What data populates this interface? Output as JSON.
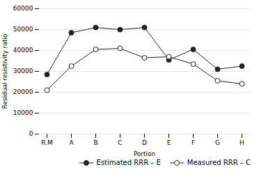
{
  "chart_data": {
    "type": "line",
    "categories": [
      "R.M",
      "A",
      "B",
      "C",
      "D",
      "E",
      "F",
      "G",
      "H"
    ],
    "series": [
      {
        "name": "Estimated RRR – E",
        "color": "#222222",
        "marker": "circle",
        "values": [
          28500,
          48500,
          51000,
          50000,
          51000,
          35500,
          40500,
          31000,
          32500
        ]
      },
      {
        "name": "Measured RRR – C",
        "color": "#222222",
        "marker": "open circle",
        "values": [
          21000,
          32500,
          40500,
          41000,
          36500,
          37000,
          33500,
          25500,
          24000
        ]
      }
    ],
    "xlabel": "Portion",
    "ylabel": "Residual resistivity ratio",
    "ylim": [
      0,
      60000
    ],
    "yticks": [
      0,
      10000,
      20000,
      30000,
      40000,
      50000,
      60000
    ],
    "grid": true,
    "legend": "lower right"
  }
}
